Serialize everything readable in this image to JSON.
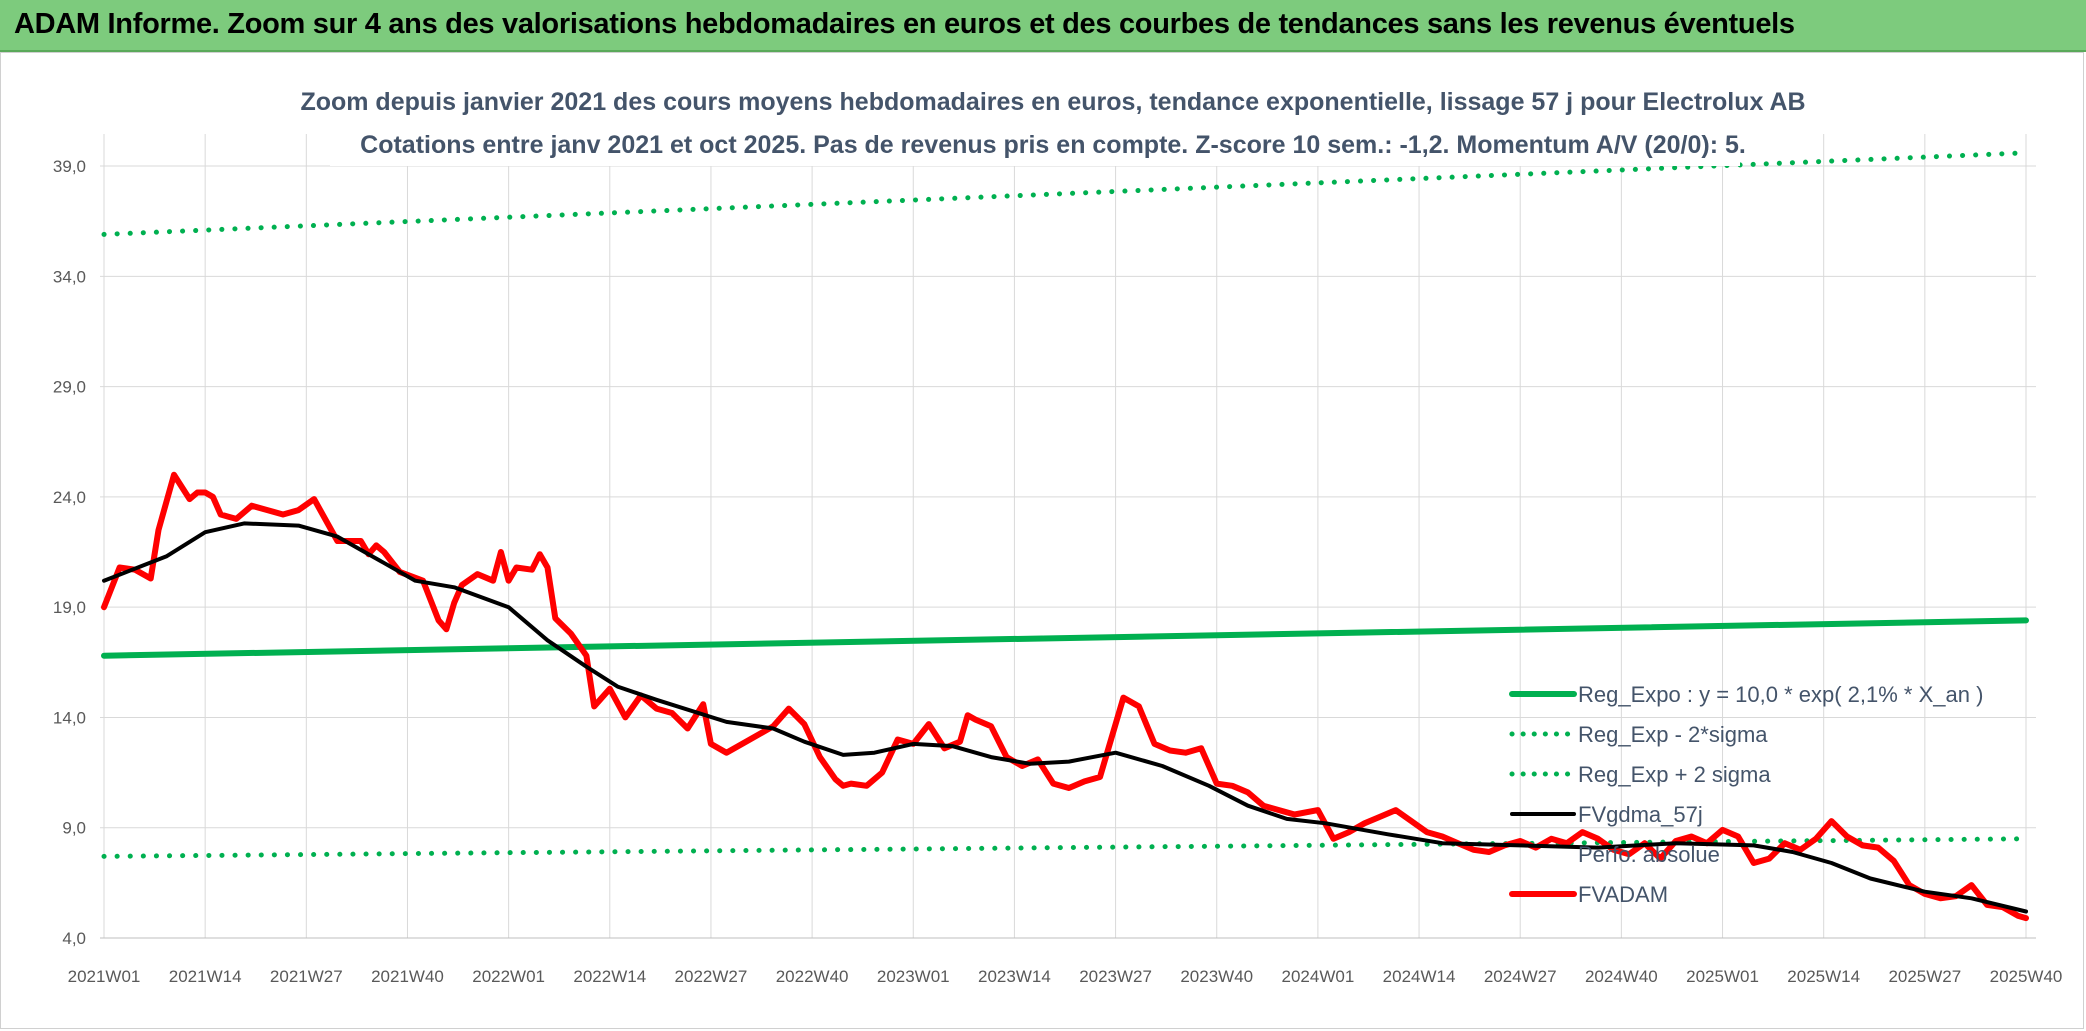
{
  "banner": {
    "title": "ADAM Informe. Zoom sur 4 ans des valorisations hebdomadaires en euros et des courbes de tendances sans les revenus éventuels"
  },
  "chart_data": {
    "type": "line",
    "title": "Zoom depuis janvier 2021 des cours moyens hebdomadaires en euros, tendance exponentielle, lissage 57 j pour Electrolux AB",
    "subtitle": "Cotations entre janv 2021 et oct 2025. Pas de revenus pris en compte. Z-score 10 sem.: -1,2. Momentum A/V (20/0): 5.",
    "xlabel": "",
    "ylabel": "",
    "ylim": [
      4.0,
      40.0
    ],
    "yticks": [
      "4,0",
      "9,0",
      "14,0",
      "19,0",
      "24,0",
      "29,0",
      "34,0",
      "39,0"
    ],
    "xticks": [
      "2021W01",
      "2021W14",
      "2021W27",
      "2021W40",
      "2022W01",
      "2022W14",
      "2022W27",
      "2022W40",
      "2023W01",
      "2023W14",
      "2023W27",
      "2023W40",
      "2024W01",
      "2024W14",
      "2024W27",
      "2024W40",
      "2025W01",
      "2025W14",
      "2025W27",
      "2025W40"
    ],
    "grid": true,
    "legend_position": "bottom-right",
    "series": [
      {
        "name": "Reg_Expo : y = 10,0 * exp( 2,1% *  X_an )",
        "color": "#00b050",
        "style": "solid",
        "x": [
          0,
          247
        ],
        "y": [
          16.8,
          18.4
        ]
      },
      {
        "name": "Reg_Exp - 2*sigma",
        "color": "#00b050",
        "style": "dotted",
        "x": [
          0,
          247
        ],
        "y": [
          7.7,
          8.5
        ]
      },
      {
        "name": "Reg_Exp + 2 sigma",
        "color": "#00b050",
        "style": "dotted",
        "x": [
          0,
          247
        ],
        "y": [
          35.9,
          39.6
        ]
      },
      {
        "name": "FVgdma_57j",
        "color": "#000000",
        "style": "solid",
        "x": [
          0,
          8,
          13,
          18,
          25,
          30,
          35,
          40,
          45,
          52,
          57,
          62,
          66,
          71,
          80,
          86,
          90,
          95,
          99,
          104,
          109,
          114,
          119,
          124,
          130,
          136,
          142,
          147,
          152,
          157,
          165,
          172,
          182,
          192,
          202,
          212,
          217,
          222,
          227,
          234,
          240,
          247
        ],
        "y": [
          20.2,
          21.3,
          22.4,
          22.8,
          22.7,
          22.2,
          21.2,
          20.2,
          19.9,
          19.0,
          17.5,
          16.3,
          15.4,
          14.8,
          13.8,
          13.5,
          12.9,
          12.3,
          12.4,
          12.8,
          12.7,
          12.2,
          11.9,
          12.0,
          12.4,
          11.8,
          10.9,
          10.0,
          9.4,
          9.2,
          8.7,
          8.3,
          8.2,
          8.1,
          8.3,
          8.2,
          7.9,
          7.4,
          6.7,
          6.1,
          5.8,
          5.2
        ]
      },
      {
        "name": "Perfo. absolue",
        "color": "#7f7f7f",
        "style": "solid",
        "x": [],
        "y": []
      },
      {
        "name": "FVADAM",
        "color": "#ff0000",
        "style": "solid",
        "x": [
          0,
          2,
          4,
          6,
          7,
          9,
          11,
          12,
          13,
          14,
          15,
          16,
          17,
          19,
          21,
          23,
          25,
          27,
          30,
          33,
          34,
          35,
          36,
          38,
          41,
          43,
          44,
          45,
          46,
          48,
          50,
          51,
          52,
          53,
          55,
          56,
          57,
          58,
          60,
          62,
          63,
          65,
          67,
          69,
          71,
          73,
          75,
          77,
          78,
          80,
          83,
          86,
          88,
          90,
          92,
          94,
          95,
          96,
          98,
          100,
          102,
          104,
          106,
          108,
          110,
          111,
          112,
          114,
          116,
          118,
          120,
          122,
          124,
          126,
          128,
          129,
          131,
          133,
          135,
          137,
          139,
          141,
          143,
          145,
          147,
          149,
          151,
          153,
          156,
          158,
          160,
          162,
          164,
          166,
          168,
          170,
          172,
          174,
          176,
          178,
          180,
          182,
          184,
          186,
          188,
          190,
          192,
          194,
          196,
          198,
          200,
          202,
          204,
          206,
          208,
          210,
          212,
          214,
          216,
          218,
          220,
          222,
          224,
          226,
          228,
          230,
          232,
          234,
          236,
          238,
          240,
          242,
          244,
          246,
          247
        ],
        "y": [
          19.0,
          20.8,
          20.7,
          20.3,
          22.5,
          25.0,
          23.9,
          24.2,
          24.2,
          24.0,
          23.2,
          23.1,
          23.0,
          23.6,
          23.4,
          23.2,
          23.4,
          23.9,
          22.0,
          22.0,
          21.4,
          21.8,
          21.5,
          20.6,
          20.2,
          18.4,
          18.0,
          19.2,
          20.0,
          20.5,
          20.2,
          21.5,
          20.2,
          20.8,
          20.7,
          21.4,
          20.8,
          18.5,
          17.8,
          16.8,
          14.5,
          15.3,
          14.0,
          15.0,
          14.4,
          14.2,
          13.5,
          14.6,
          12.8,
          12.4,
          13.0,
          13.6,
          14.4,
          13.7,
          12.2,
          11.2,
          10.9,
          11.0,
          10.9,
          11.5,
          13.0,
          12.8,
          13.7,
          12.6,
          12.9,
          14.1,
          13.9,
          13.6,
          12.2,
          11.8,
          12.1,
          11.0,
          10.8,
          11.1,
          11.3,
          12.5,
          14.9,
          14.5,
          12.8,
          12.5,
          12.4,
          12.6,
          11.0,
          10.9,
          10.6,
          10.0,
          9.8,
          9.6,
          9.8,
          8.5,
          8.8,
          9.2,
          9.5,
          9.8,
          9.3,
          8.8,
          8.6,
          8.3,
          8.0,
          7.9,
          8.2,
          8.4,
          8.1,
          8.5,
          8.3,
          8.8,
          8.5,
          8.0,
          7.8,
          8.3,
          7.6,
          8.4,
          8.6,
          8.3,
          8.9,
          8.6,
          7.4,
          7.6,
          8.3,
          8.0,
          8.5,
          9.3,
          8.6,
          8.2,
          8.1,
          7.5,
          6.4,
          6.0,
          5.8,
          5.9,
          6.4,
          5.5,
          5.4,
          5.0,
          4.9
        ]
      }
    ]
  }
}
